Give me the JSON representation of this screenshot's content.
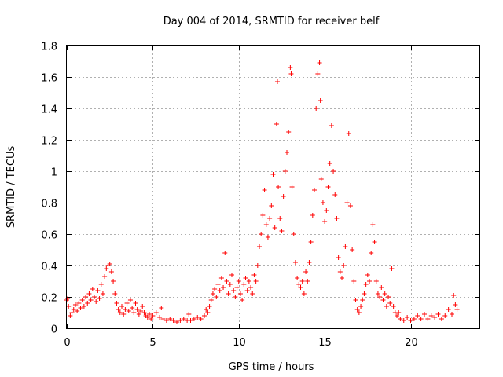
{
  "chart_data": {
    "type": "scatter",
    "title": "Day 004 of 2014, SRMTID for receiver belf",
    "xlabel": "GPS time / hours",
    "ylabel": "SRMTID / TECUs",
    "xlim": [
      0,
      24
    ],
    "ylim": [
      0,
      1.8
    ],
    "xticks": [
      0,
      5,
      10,
      15,
      20
    ],
    "xtick_labels": [
      "0",
      "5",
      "10",
      "15",
      "20"
    ],
    "yticks": [
      0,
      0.2,
      0.4,
      0.6,
      0.8,
      1,
      1.2,
      1.4,
      1.6,
      1.8
    ],
    "ytick_labels": [
      "0",
      "0.2",
      "0.4",
      "0.6",
      "0.8",
      "1",
      "1.2",
      "1.4",
      "1.6",
      "1.8"
    ],
    "grid": true,
    "marker": "plus",
    "color": "#ff0000",
    "series": [
      {
        "name": "SRMTID",
        "points": [
          [
            0.0,
            0.18
          ],
          [
            0.05,
            0.19
          ],
          [
            0.1,
            0.14
          ],
          [
            0.2,
            0.08
          ],
          [
            0.3,
            0.1
          ],
          [
            0.4,
            0.12
          ],
          [
            0.5,
            0.15
          ],
          [
            0.6,
            0.11
          ],
          [
            0.7,
            0.16
          ],
          [
            0.8,
            0.13
          ],
          [
            0.9,
            0.18
          ],
          [
            1.0,
            0.14
          ],
          [
            1.1,
            0.2
          ],
          [
            1.2,
            0.16
          ],
          [
            1.3,
            0.22
          ],
          [
            1.4,
            0.18
          ],
          [
            1.5,
            0.25
          ],
          [
            1.6,
            0.2
          ],
          [
            1.7,
            0.17
          ],
          [
            1.8,
            0.24
          ],
          [
            1.9,
            0.19
          ],
          [
            2.0,
            0.28
          ],
          [
            2.1,
            0.22
          ],
          [
            2.2,
            0.33
          ],
          [
            2.3,
            0.38
          ],
          [
            2.4,
            0.4
          ],
          [
            2.5,
            0.41
          ],
          [
            2.6,
            0.36
          ],
          [
            2.7,
            0.3
          ],
          [
            2.8,
            0.22
          ],
          [
            2.9,
            0.16
          ],
          [
            3.0,
            0.12
          ],
          [
            3.1,
            0.1
          ],
          [
            3.2,
            0.14
          ],
          [
            3.3,
            0.09
          ],
          [
            3.4,
            0.12
          ],
          [
            3.5,
            0.16
          ],
          [
            3.6,
            0.11
          ],
          [
            3.7,
            0.18
          ],
          [
            3.8,
            0.13
          ],
          [
            3.9,
            0.1
          ],
          [
            4.0,
            0.16
          ],
          [
            4.1,
            0.12
          ],
          [
            4.2,
            0.09
          ],
          [
            4.3,
            0.11
          ],
          [
            4.4,
            0.14
          ],
          [
            4.5,
            0.1
          ],
          [
            4.6,
            0.08
          ],
          [
            4.7,
            0.07
          ],
          [
            4.8,
            0.09
          ],
          [
            4.9,
            0.06
          ],
          [
            5.0,
            0.08
          ],
          [
            5.2,
            0.1
          ],
          [
            5.4,
            0.07
          ],
          [
            5.5,
            0.13
          ],
          [
            5.6,
            0.06
          ],
          [
            5.8,
            0.05
          ],
          [
            6.0,
            0.06
          ],
          [
            6.2,
            0.05
          ],
          [
            6.4,
            0.04
          ],
          [
            6.6,
            0.05
          ],
          [
            6.8,
            0.06
          ],
          [
            7.0,
            0.05
          ],
          [
            7.1,
            0.09
          ],
          [
            7.2,
            0.05
          ],
          [
            7.4,
            0.06
          ],
          [
            7.6,
            0.07
          ],
          [
            7.8,
            0.06
          ],
          [
            8.0,
            0.08
          ],
          [
            8.1,
            0.12
          ],
          [
            8.2,
            0.1
          ],
          [
            8.3,
            0.14
          ],
          [
            8.4,
            0.18
          ],
          [
            8.5,
            0.22
          ],
          [
            8.6,
            0.25
          ],
          [
            8.7,
            0.2
          ],
          [
            8.8,
            0.28
          ],
          [
            8.9,
            0.24
          ],
          [
            9.0,
            0.32
          ],
          [
            9.1,
            0.26
          ],
          [
            9.2,
            0.48
          ],
          [
            9.3,
            0.3
          ],
          [
            9.4,
            0.22
          ],
          [
            9.5,
            0.28
          ],
          [
            9.6,
            0.34
          ],
          [
            9.7,
            0.24
          ],
          [
            9.8,
            0.2
          ],
          [
            9.9,
            0.26
          ],
          [
            10.0,
            0.3
          ],
          [
            10.1,
            0.22
          ],
          [
            10.2,
            0.18
          ],
          [
            10.3,
            0.28
          ],
          [
            10.4,
            0.32
          ],
          [
            10.5,
            0.24
          ],
          [
            10.6,
            0.3
          ],
          [
            10.7,
            0.26
          ],
          [
            10.8,
            0.22
          ],
          [
            10.9,
            0.34
          ],
          [
            11.0,
            0.3
          ],
          [
            11.1,
            0.4
          ],
          [
            11.2,
            0.52
          ],
          [
            11.3,
            0.6
          ],
          [
            11.4,
            0.72
          ],
          [
            11.5,
            0.88
          ],
          [
            11.6,
            0.66
          ],
          [
            11.7,
            0.58
          ],
          [
            11.8,
            0.7
          ],
          [
            11.9,
            0.78
          ],
          [
            12.0,
            0.98
          ],
          [
            12.1,
            0.64
          ],
          [
            12.2,
            1.3
          ],
          [
            12.25,
            1.57
          ],
          [
            12.3,
            0.9
          ],
          [
            12.4,
            0.7
          ],
          [
            12.5,
            0.62
          ],
          [
            12.6,
            0.84
          ],
          [
            12.7,
            1.0
          ],
          [
            12.8,
            1.12
          ],
          [
            12.9,
            1.25
          ],
          [
            13.0,
            1.66
          ],
          [
            13.05,
            1.62
          ],
          [
            13.1,
            0.9
          ],
          [
            13.2,
            0.6
          ],
          [
            13.3,
            0.42
          ],
          [
            13.4,
            0.32
          ],
          [
            13.5,
            0.28
          ],
          [
            13.6,
            0.26
          ],
          [
            13.7,
            0.3
          ],
          [
            13.8,
            0.22
          ],
          [
            13.9,
            0.36
          ],
          [
            14.0,
            0.3
          ],
          [
            14.1,
            0.42
          ],
          [
            14.2,
            0.55
          ],
          [
            14.3,
            0.72
          ],
          [
            14.4,
            0.88
          ],
          [
            14.5,
            1.4
          ],
          [
            14.6,
            1.62
          ],
          [
            14.7,
            1.69
          ],
          [
            14.75,
            1.45
          ],
          [
            14.8,
            0.95
          ],
          [
            14.9,
            0.8
          ],
          [
            15.0,
            0.68
          ],
          [
            15.1,
            0.75
          ],
          [
            15.2,
            0.9
          ],
          [
            15.3,
            1.05
          ],
          [
            15.4,
            1.29
          ],
          [
            15.5,
            1.0
          ],
          [
            15.6,
            0.85
          ],
          [
            15.7,
            0.7
          ],
          [
            15.8,
            0.45
          ],
          [
            15.9,
            0.36
          ],
          [
            16.0,
            0.32
          ],
          [
            16.1,
            0.4
          ],
          [
            16.2,
            0.52
          ],
          [
            16.3,
            0.8
          ],
          [
            16.4,
            1.24
          ],
          [
            16.5,
            0.78
          ],
          [
            16.6,
            0.5
          ],
          [
            16.7,
            0.3
          ],
          [
            16.8,
            0.18
          ],
          [
            16.9,
            0.12
          ],
          [
            17.0,
            0.1
          ],
          [
            17.1,
            0.14
          ],
          [
            17.2,
            0.18
          ],
          [
            17.3,
            0.22
          ],
          [
            17.4,
            0.28
          ],
          [
            17.5,
            0.34
          ],
          [
            17.6,
            0.3
          ],
          [
            17.7,
            0.48
          ],
          [
            17.8,
            0.66
          ],
          [
            17.9,
            0.55
          ],
          [
            18.0,
            0.3
          ],
          [
            18.1,
            0.22
          ],
          [
            18.2,
            0.2
          ],
          [
            18.3,
            0.26
          ],
          [
            18.4,
            0.18
          ],
          [
            18.5,
            0.22
          ],
          [
            18.6,
            0.14
          ],
          [
            18.7,
            0.2
          ],
          [
            18.8,
            0.16
          ],
          [
            18.9,
            0.38
          ],
          [
            19.0,
            0.14
          ],
          [
            19.1,
            0.1
          ],
          [
            19.2,
            0.08
          ],
          [
            19.3,
            0.1
          ],
          [
            19.4,
            0.06
          ],
          [
            19.6,
            0.05
          ],
          [
            19.8,
            0.07
          ],
          [
            20.0,
            0.05
          ],
          [
            20.2,
            0.06
          ],
          [
            20.4,
            0.08
          ],
          [
            20.6,
            0.06
          ],
          [
            20.8,
            0.09
          ],
          [
            21.0,
            0.06
          ],
          [
            21.2,
            0.08
          ],
          [
            21.4,
            0.07
          ],
          [
            21.6,
            0.09
          ],
          [
            21.8,
            0.06
          ],
          [
            22.0,
            0.08
          ],
          [
            22.2,
            0.12
          ],
          [
            22.4,
            0.09
          ],
          [
            22.5,
            0.21
          ],
          [
            22.6,
            0.15
          ],
          [
            22.7,
            0.12
          ]
        ]
      }
    ]
  }
}
